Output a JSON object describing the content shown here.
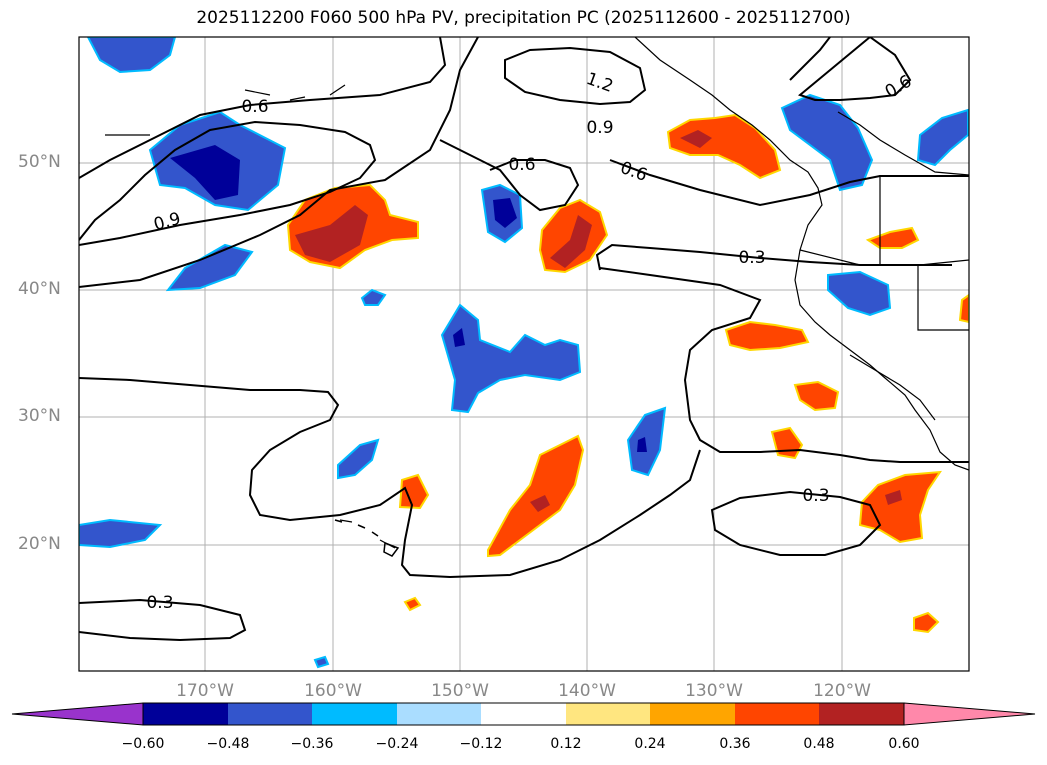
{
  "title": "2025112200 F060 500 hPa PV, precipitation PC (2025112600 - 2025112700)",
  "lat_labels": [
    "50°N",
    "40°N",
    "30°N",
    "20°N"
  ],
  "lon_labels": [
    "170°W",
    "160°W",
    "150°W",
    "140°W",
    "130°W",
    "120°W"
  ],
  "contour_labels": {
    "c1": "0.6",
    "c2": "1.2",
    "c3": "0.9",
    "c4": "0.6",
    "c5": "0.6",
    "c6": "0.9",
    "c7": "0.3",
    "c8": "0.3",
    "c9": "0.3",
    "c10": "0.6"
  },
  "colorbar": {
    "ticks": [
      "−0.60",
      "−0.48",
      "−0.36",
      "−0.24",
      "−0.12",
      "0.12",
      "0.24",
      "0.36",
      "0.48",
      "0.60"
    ],
    "colors": [
      "#9933cc",
      "#000099",
      "#3355cc",
      "#00bbff",
      "#aaddff",
      "#ffffff",
      "#ffe680",
      "#ffa500",
      "#ff4500",
      "#b22222",
      "#ff88aa"
    ]
  },
  "colors": {
    "neg_strong": "#000099",
    "neg_mid": "#3355cc",
    "neg_weak": "#00bbff",
    "pos_weak": "#ffd700",
    "pos_mid": "#ff4500",
    "pos_strong": "#b22222"
  }
}
